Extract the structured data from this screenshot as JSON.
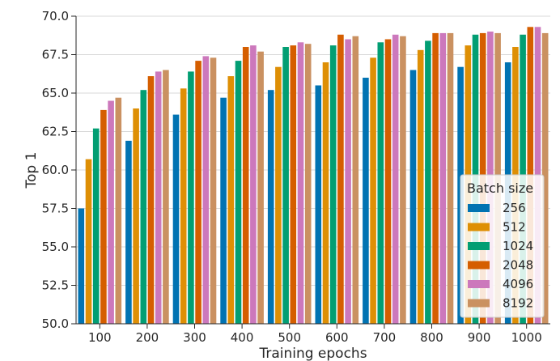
{
  "chart_data": {
    "type": "bar",
    "xlabel": "Training epochs",
    "ylabel": "Top 1",
    "ylim": [
      50.0,
      70.0
    ],
    "yticks": [
      "50.0",
      "52.5",
      "55.0",
      "57.5",
      "60.0",
      "62.5",
      "65.0",
      "67.5",
      "70.0"
    ],
    "grid": "horizontal",
    "legend": {
      "title": "Batch size",
      "position": "lower-right"
    },
    "categories": [
      "100",
      "200",
      "300",
      "400",
      "500",
      "600",
      "700",
      "800",
      "900",
      "1000"
    ],
    "series": [
      {
        "name": "256",
        "color": "#0173b2",
        "values": [
          57.5,
          61.9,
          63.6,
          64.7,
          65.2,
          65.5,
          66.0,
          66.5,
          66.7,
          67.0
        ]
      },
      {
        "name": "512",
        "color": "#de8f05",
        "values": [
          60.7,
          64.0,
          65.3,
          66.1,
          66.7,
          67.0,
          67.3,
          67.8,
          68.1,
          68.0
        ]
      },
      {
        "name": "1024",
        "color": "#029e73",
        "values": [
          62.7,
          65.2,
          66.4,
          67.1,
          68.0,
          68.1,
          68.3,
          68.4,
          68.8,
          68.8
        ]
      },
      {
        "name": "2048",
        "color": "#d55e00",
        "values": [
          63.9,
          66.1,
          67.1,
          68.0,
          68.1,
          68.8,
          68.5,
          68.9,
          68.9,
          69.3
        ]
      },
      {
        "name": "4096",
        "color": "#cc78bc",
        "values": [
          64.5,
          66.4,
          67.4,
          68.1,
          68.3,
          68.5,
          68.8,
          68.9,
          69.0,
          69.3
        ]
      },
      {
        "name": "8192",
        "color": "#ca9161",
        "values": [
          64.7,
          66.5,
          67.3,
          67.7,
          68.2,
          68.7,
          68.7,
          68.9,
          68.9,
          68.9
        ]
      }
    ]
  }
}
